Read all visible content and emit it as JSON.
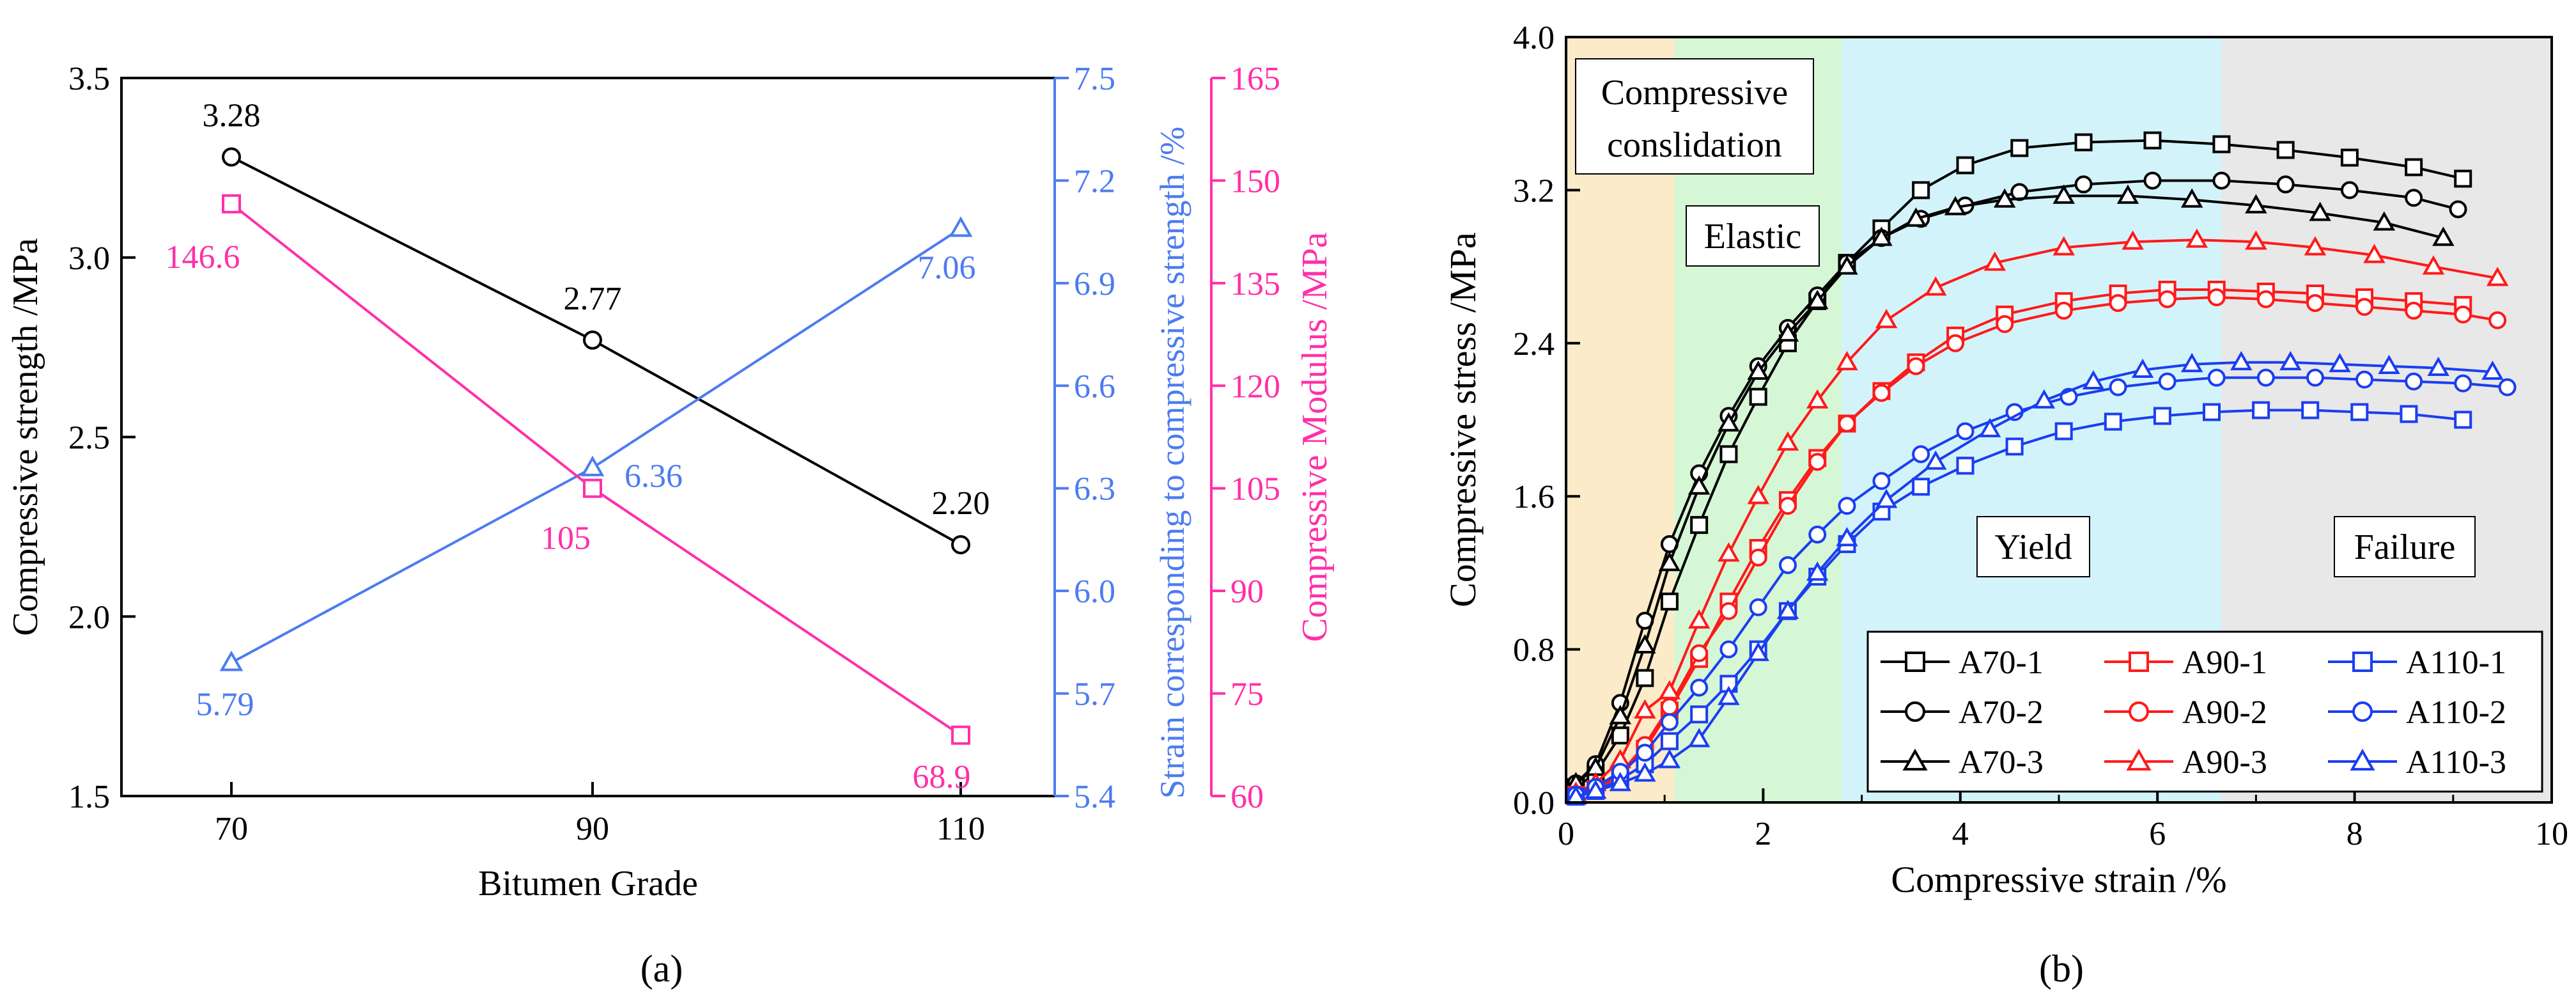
{
  "chart_data": [
    {
      "panel_label": "(a)",
      "type": "line",
      "xlabel": "Bitumen Grade",
      "categories": [
        "70",
        "90",
        "110"
      ],
      "axes": {
        "left": {
          "label": "Compressive strength /MPa",
          "ylim": [
            1.5,
            3.5
          ],
          "ticks": [
            "1.5",
            "2.0",
            "2.5",
            "3.0",
            "3.5"
          ],
          "color": "#000000"
        },
        "right1": {
          "label": "Strain corresponding to compressive strength /%",
          "ylim": [
            5.4,
            7.5
          ],
          "ticks": [
            "5.4",
            "5.7",
            "6.0",
            "6.3",
            "6.6",
            "6.9",
            "7.2",
            "7.5"
          ],
          "color": "#4D7CF0"
        },
        "right2": {
          "label": "Compressive Modulus /MPa",
          "ylim": [
            60,
            165
          ],
          "ticks": [
            "60",
            "75",
            "90",
            "105",
            "120",
            "135",
            "150",
            "165"
          ],
          "color": "#FF2FA8"
        }
      },
      "series": [
        {
          "name": "Compressive strength",
          "axis": "left",
          "marker": "circle",
          "color": "#000000",
          "values": [
            3.28,
            2.77,
            2.2
          ],
          "labels": [
            "3.28",
            "2.77",
            "2.20"
          ]
        },
        {
          "name": "Strain corresponding to compressive strength",
          "axis": "right1",
          "marker": "triangle",
          "color": "#4D7CF0",
          "values": [
            5.79,
            6.36,
            7.06
          ],
          "labels": [
            "5.79",
            "6.36",
            "7.06"
          ]
        },
        {
          "name": "Compressive Modulus",
          "axis": "right2",
          "marker": "square",
          "color": "#FF2FA8",
          "values": [
            146.6,
            105,
            68.9
          ],
          "labels": [
            "146.6",
            "105",
            "68.9"
          ]
        }
      ]
    },
    {
      "panel_label": "(b)",
      "type": "line",
      "xlabel": "Compressive strain /%",
      "ylabel": "Compressive stress /MPa",
      "xlim": [
        0,
        10
      ],
      "ylim": [
        0,
        4.0
      ],
      "xticks": [
        "0",
        "2",
        "4",
        "6",
        "8",
        "10"
      ],
      "yticks": [
        "0.0",
        "0.8",
        "1.6",
        "2.4",
        "3.2",
        "4.0"
      ],
      "regions": [
        {
          "label": "Compressive\nconslidation",
          "x0": 0,
          "x1": 1.1,
          "color": "#FCEBC8"
        },
        {
          "label": "Elastic",
          "x0": 1.1,
          "x1": 2.8,
          "color": "#D5F7D5"
        },
        {
          "label": "Yield",
          "x0": 2.8,
          "x1": 6.65,
          "color": "#D3F3FB"
        },
        {
          "label": "Failure",
          "x0": 6.65,
          "x1": 10,
          "color": "#E8E8E8"
        }
      ],
      "legend": {
        "position": "bottom-right",
        "columns": 3
      },
      "series": [
        {
          "name": "A70-1",
          "color": "#000000",
          "marker": "square",
          "x": [
            0.1,
            0.3,
            0.55,
            0.8,
            1.05,
            1.35,
            1.65,
            1.95,
            2.25,
            2.55,
            2.85,
            3.2,
            3.6,
            4.05,
            4.6,
            5.25,
            5.95,
            6.65,
            7.3,
            7.95,
            8.6,
            9.1
          ],
          "y": [
            0.08,
            0.15,
            0.35,
            0.65,
            1.05,
            1.45,
            1.82,
            2.12,
            2.4,
            2.62,
            2.82,
            3.0,
            3.2,
            3.33,
            3.42,
            3.45,
            3.46,
            3.44,
            3.41,
            3.37,
            3.32,
            3.26
          ]
        },
        {
          "name": "A70-2",
          "color": "#000000",
          "marker": "circle",
          "x": [
            0.1,
            0.3,
            0.55,
            0.8,
            1.05,
            1.35,
            1.65,
            1.95,
            2.25,
            2.55,
            2.85,
            3.2,
            3.6,
            4.05,
            4.6,
            5.25,
            5.95,
            6.65,
            7.3,
            7.95,
            8.6,
            9.05
          ],
          "y": [
            0.1,
            0.2,
            0.52,
            0.95,
            1.35,
            1.72,
            2.02,
            2.28,
            2.48,
            2.65,
            2.82,
            2.95,
            3.05,
            3.12,
            3.19,
            3.23,
            3.25,
            3.25,
            3.23,
            3.2,
            3.16,
            3.1
          ]
        },
        {
          "name": "A70-3",
          "color": "#000000",
          "marker": "triangle",
          "x": [
            0.1,
            0.3,
            0.55,
            0.8,
            1.05,
            1.35,
            1.65,
            1.95,
            2.25,
            2.55,
            2.85,
            3.2,
            3.55,
            3.95,
            4.45,
            5.05,
            5.7,
            6.35,
            7.0,
            7.65,
            8.3,
            8.9
          ],
          "y": [
            0.1,
            0.18,
            0.45,
            0.82,
            1.25,
            1.65,
            1.98,
            2.25,
            2.45,
            2.62,
            2.8,
            2.95,
            3.05,
            3.11,
            3.15,
            3.17,
            3.17,
            3.15,
            3.12,
            3.08,
            3.03,
            2.95
          ]
        },
        {
          "name": "A90-1",
          "color": "#FF1A1A",
          "marker": "square",
          "x": [
            0.1,
            0.3,
            0.55,
            0.8,
            1.05,
            1.35,
            1.65,
            1.95,
            2.25,
            2.55,
            2.85,
            3.2,
            3.55,
            3.95,
            4.45,
            5.05,
            5.6,
            6.1,
            6.6,
            7.1,
            7.6,
            8.1,
            8.6,
            9.1
          ],
          "y": [
            0.04,
            0.07,
            0.14,
            0.28,
            0.48,
            0.75,
            1.05,
            1.33,
            1.58,
            1.8,
            1.98,
            2.15,
            2.3,
            2.44,
            2.55,
            2.62,
            2.66,
            2.68,
            2.68,
            2.67,
            2.66,
            2.64,
            2.62,
            2.6
          ]
        },
        {
          "name": "A90-2",
          "color": "#FF1A1A",
          "marker": "circle",
          "x": [
            0.1,
            0.3,
            0.55,
            0.8,
            1.05,
            1.35,
            1.65,
            1.95,
            2.25,
            2.55,
            2.85,
            3.2,
            3.55,
            3.95,
            4.45,
            5.05,
            5.6,
            6.1,
            6.6,
            7.1,
            7.6,
            8.1,
            8.6,
            9.1,
            9.45
          ],
          "y": [
            0.04,
            0.07,
            0.15,
            0.3,
            0.5,
            0.78,
            1.0,
            1.28,
            1.55,
            1.78,
            1.98,
            2.14,
            2.28,
            2.4,
            2.5,
            2.57,
            2.61,
            2.63,
            2.64,
            2.63,
            2.61,
            2.59,
            2.57,
            2.55,
            2.52
          ]
        },
        {
          "name": "A90-3",
          "color": "#FF1A1A",
          "marker": "triangle",
          "x": [
            0.1,
            0.3,
            0.55,
            0.8,
            1.05,
            1.35,
            1.65,
            1.95,
            2.25,
            2.55,
            2.85,
            3.25,
            3.75,
            4.35,
            5.05,
            5.75,
            6.4,
            7.0,
            7.6,
            8.2,
            8.8,
            9.45
          ],
          "y": [
            0.05,
            0.1,
            0.22,
            0.48,
            0.58,
            0.95,
            1.3,
            1.6,
            1.88,
            2.1,
            2.3,
            2.52,
            2.69,
            2.82,
            2.9,
            2.93,
            2.94,
            2.93,
            2.9,
            2.86,
            2.8,
            2.74
          ]
        },
        {
          "name": "A110-1",
          "color": "#1A3EF0",
          "marker": "square",
          "x": [
            0.1,
            0.3,
            0.55,
            0.8,
            1.05,
            1.35,
            1.65,
            1.95,
            2.25,
            2.55,
            2.85,
            3.2,
            3.6,
            4.05,
            4.55,
            5.05,
            5.55,
            6.05,
            6.55,
            7.05,
            7.55,
            8.05,
            8.55,
            9.1
          ],
          "y": [
            0.03,
            0.06,
            0.12,
            0.2,
            0.32,
            0.46,
            0.62,
            0.8,
            1.0,
            1.18,
            1.35,
            1.52,
            1.65,
            1.76,
            1.86,
            1.94,
            1.99,
            2.02,
            2.04,
            2.05,
            2.05,
            2.04,
            2.03,
            2.0
          ]
        },
        {
          "name": "A110-2",
          "color": "#1A3EF0",
          "marker": "circle",
          "x": [
            0.1,
            0.3,
            0.55,
            0.8,
            1.05,
            1.35,
            1.65,
            1.95,
            2.25,
            2.55,
            2.85,
            3.2,
            3.6,
            4.05,
            4.55,
            5.1,
            5.6,
            6.1,
            6.6,
            7.1,
            7.6,
            8.1,
            8.6,
            9.1,
            9.55
          ],
          "y": [
            0.04,
            0.08,
            0.16,
            0.26,
            0.42,
            0.6,
            0.8,
            1.02,
            1.24,
            1.4,
            1.55,
            1.68,
            1.82,
            1.94,
            2.04,
            2.12,
            2.17,
            2.2,
            2.22,
            2.22,
            2.22,
            2.21,
            2.2,
            2.19,
            2.17
          ]
        },
        {
          "name": "A110-3",
          "color": "#1A3EF0",
          "marker": "triangle",
          "x": [
            0.1,
            0.3,
            0.55,
            0.8,
            1.05,
            1.35,
            1.65,
            1.95,
            2.25,
            2.55,
            2.85,
            3.25,
            3.75,
            4.3,
            4.85,
            5.35,
            5.85,
            6.35,
            6.85,
            7.35,
            7.85,
            8.35,
            8.85,
            9.4
          ],
          "y": [
            0.03,
            0.06,
            0.1,
            0.15,
            0.22,
            0.33,
            0.55,
            0.78,
            1.0,
            1.2,
            1.38,
            1.58,
            1.78,
            1.95,
            2.1,
            2.2,
            2.26,
            2.29,
            2.3,
            2.3,
            2.29,
            2.28,
            2.27,
            2.25
          ]
        }
      ]
    }
  ]
}
